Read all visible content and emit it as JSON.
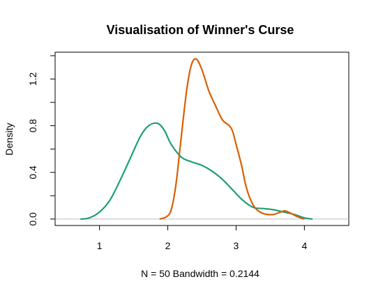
{
  "chart_data": {
    "type": "line",
    "title": "Visualisation of Winner's Curse",
    "xlabel": "N = 50   Bandwidth = 0.2144",
    "ylabel": "Density",
    "xlim": [
      0.35,
      4.65
    ],
    "ylim": [
      -0.055,
      1.43
    ],
    "x_ticks": [
      "1",
      "2",
      "3",
      "4"
    ],
    "y_ticks": [
      "0.0",
      "0.4",
      "0.8",
      "1.2"
    ],
    "reference_line": {
      "y": 0,
      "color": "#bebebe"
    },
    "grid": false,
    "series": [
      {
        "color": "#1b9e77",
        "x": [
          0.72,
          0.85,
          1.0,
          1.15,
          1.3,
          1.45,
          1.6,
          1.72,
          1.85,
          1.95,
          2.05,
          2.2,
          2.35,
          2.5,
          2.65,
          2.8,
          2.95,
          3.1,
          3.25,
          3.4,
          3.55,
          3.7,
          3.85,
          4.0,
          4.12
        ],
        "y": [
          0.0,
          0.01,
          0.06,
          0.16,
          0.33,
          0.52,
          0.71,
          0.8,
          0.82,
          0.76,
          0.64,
          0.53,
          0.49,
          0.46,
          0.41,
          0.34,
          0.25,
          0.16,
          0.1,
          0.09,
          0.08,
          0.06,
          0.04,
          0.01,
          0.0
        ]
      },
      {
        "color": "#d95f02",
        "x": [
          1.88,
          1.98,
          2.05,
          2.12,
          2.2,
          2.28,
          2.35,
          2.42,
          2.5,
          2.6,
          2.7,
          2.8,
          2.9,
          2.95,
          3.0,
          3.08,
          3.15,
          3.25,
          3.35,
          3.45,
          3.55,
          3.65,
          3.72,
          3.8,
          3.9,
          4.0
        ],
        "y": [
          0.0,
          0.02,
          0.08,
          0.3,
          0.72,
          1.12,
          1.33,
          1.37,
          1.28,
          1.1,
          0.97,
          0.85,
          0.8,
          0.75,
          0.64,
          0.46,
          0.27,
          0.12,
          0.06,
          0.04,
          0.04,
          0.06,
          0.07,
          0.05,
          0.02,
          0.0
        ]
      }
    ]
  }
}
